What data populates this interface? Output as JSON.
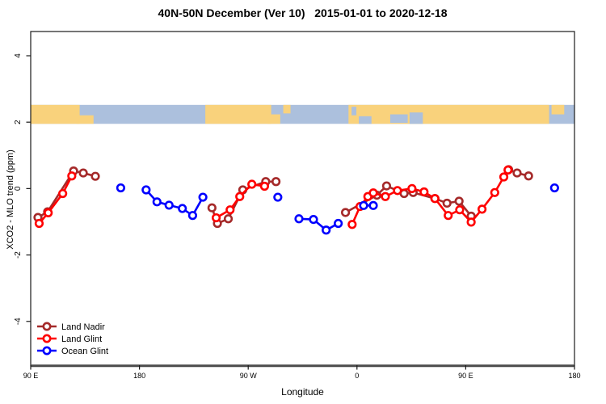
{
  "chart_data": {
    "type": "line",
    "title": "40N-50N December (Ver 10)   2015-01-01 to 2020-12-18",
    "xlabel": "Longitude",
    "ylabel": "XCO2 - MLO trend (ppm)",
    "xlim_deg": [
      90,
      540
    ],
    "ylim": [
      -5.32,
      4.73
    ],
    "grid": "off",
    "x_ticks": [
      {
        "deg": 90,
        "label": "90 E"
      },
      {
        "deg": 180,
        "label": "180"
      },
      {
        "deg": 270,
        "label": "90 W"
      },
      {
        "deg": 360,
        "label": "0"
      },
      {
        "deg": 450,
        "label": "90 E"
      },
      {
        "deg": 540,
        "label": "180"
      }
    ],
    "y_ticks": [
      {
        "value": -4,
        "label": "-4"
      },
      {
        "value": -2,
        "label": "-2"
      },
      {
        "value": 0,
        "label": "0"
      },
      {
        "value": 2,
        "label": "2"
      },
      {
        "value": 4,
        "label": "4"
      }
    ],
    "legend": {
      "position": "bottom-left"
    },
    "map_strip": {
      "v_top": 2.52,
      "v_bottom": 1.95,
      "ocean_color": "#ACC0DD",
      "land_color": "#F9D27C",
      "land_rects": [
        [
          90,
          130.5,
          0,
          1
        ],
        [
          128,
          142,
          0.55,
          1
        ],
        [
          234.5,
          289,
          0,
          1
        ],
        [
          286,
          296.5,
          0.5,
          1
        ],
        [
          299,
          305,
          0,
          0.45
        ],
        [
          353,
          519,
          0,
          1
        ],
        [
          521,
          531.5,
          0,
          0.5
        ]
      ],
      "ocean_overlays": [
        [
          355.5,
          359.5,
          0.1,
          0.55
        ],
        [
          361.5,
          372,
          0.6,
          1
        ],
        [
          387.5,
          402,
          0.5,
          0.95
        ],
        [
          403.5,
          414.5,
          0.4,
          1
        ]
      ]
    },
    "series": [
      {
        "name": "Land Nadir",
        "color": "#A52A2A",
        "segments": [
          [
            [
              96,
              -0.87
            ],
            [
              104,
              -0.7
            ],
            [
              125.5,
              0.53
            ],
            [
              133.5,
              0.47
            ],
            [
              143.5,
              0.37
            ]
          ],
          [
            [
              240,
              -0.58
            ],
            [
              244.5,
              -1.05
            ],
            [
              253.5,
              -0.91
            ],
            [
              265.5,
              -0.04
            ],
            [
              284.5,
              0.21
            ],
            [
              293,
              0.21
            ]
          ],
          [
            [
              350.5,
              -0.72
            ],
            [
              376.5,
              -0.2
            ],
            [
              384.5,
              0.08
            ],
            [
              399,
              -0.15
            ],
            [
              406.5,
              -0.12
            ],
            [
              424.5,
              -0.3
            ],
            [
              434.5,
              -0.44
            ],
            [
              444.5,
              -0.38
            ],
            [
              454.5,
              -0.83
            ]
          ],
          [
            [
              485.5,
              0.57
            ],
            [
              492.5,
              0.47
            ],
            [
              502,
              0.38
            ]
          ]
        ]
      },
      {
        "name": "Land Glint",
        "color": "#FF0000",
        "segments": [
          [
            [
              97,
              -1.05
            ],
            [
              104.5,
              -0.73
            ],
            [
              116.5,
              -0.15
            ],
            [
              124,
              0.38
            ]
          ],
          [
            [
              243.5,
              -0.88
            ],
            [
              255,
              -0.64
            ],
            [
              263,
              -0.24
            ],
            [
              273,
              0.13
            ],
            [
              283.5,
              0.07
            ]
          ],
          [
            [
              356,
              -1.08
            ],
            [
              362.5,
              -0.54
            ],
            [
              369,
              -0.24
            ],
            [
              373.5,
              -0.13
            ],
            [
              383.5,
              -0.24
            ],
            [
              393.5,
              -0.06
            ],
            [
              405.5,
              0.0
            ],
            [
              415.5,
              -0.1
            ],
            [
              424.5,
              -0.3
            ],
            [
              435.5,
              -0.81
            ],
            [
              445,
              -0.64
            ],
            [
              454.5,
              -1.01
            ],
            [
              463.5,
              -0.62
            ],
            [
              474,
              -0.12
            ],
            [
              481.5,
              0.35
            ],
            [
              485,
              0.56
            ]
          ]
        ]
      },
      {
        "name": "Ocean Glint",
        "color": "#0000FF",
        "segments": [
          [
            [
              164.5,
              0.02
            ]
          ],
          [
            [
              185.5,
              -0.04
            ],
            [
              194.5,
              -0.4
            ],
            [
              204.5,
              -0.5
            ],
            [
              215.5,
              -0.6
            ],
            [
              224,
              -0.81
            ],
            [
              232.5,
              -0.26
            ]
          ],
          [
            [
              294.5,
              -0.26
            ]
          ],
          [
            [
              312,
              -0.91
            ],
            [
              324,
              -0.93
            ],
            [
              334.5,
              -1.25
            ],
            [
              344.5,
              -1.05
            ]
          ],
          [
            [
              365.5,
              -0.51
            ],
            [
              373.5,
              -0.51
            ]
          ],
          [
            [
              523.5,
              0.02
            ]
          ]
        ]
      }
    ]
  }
}
